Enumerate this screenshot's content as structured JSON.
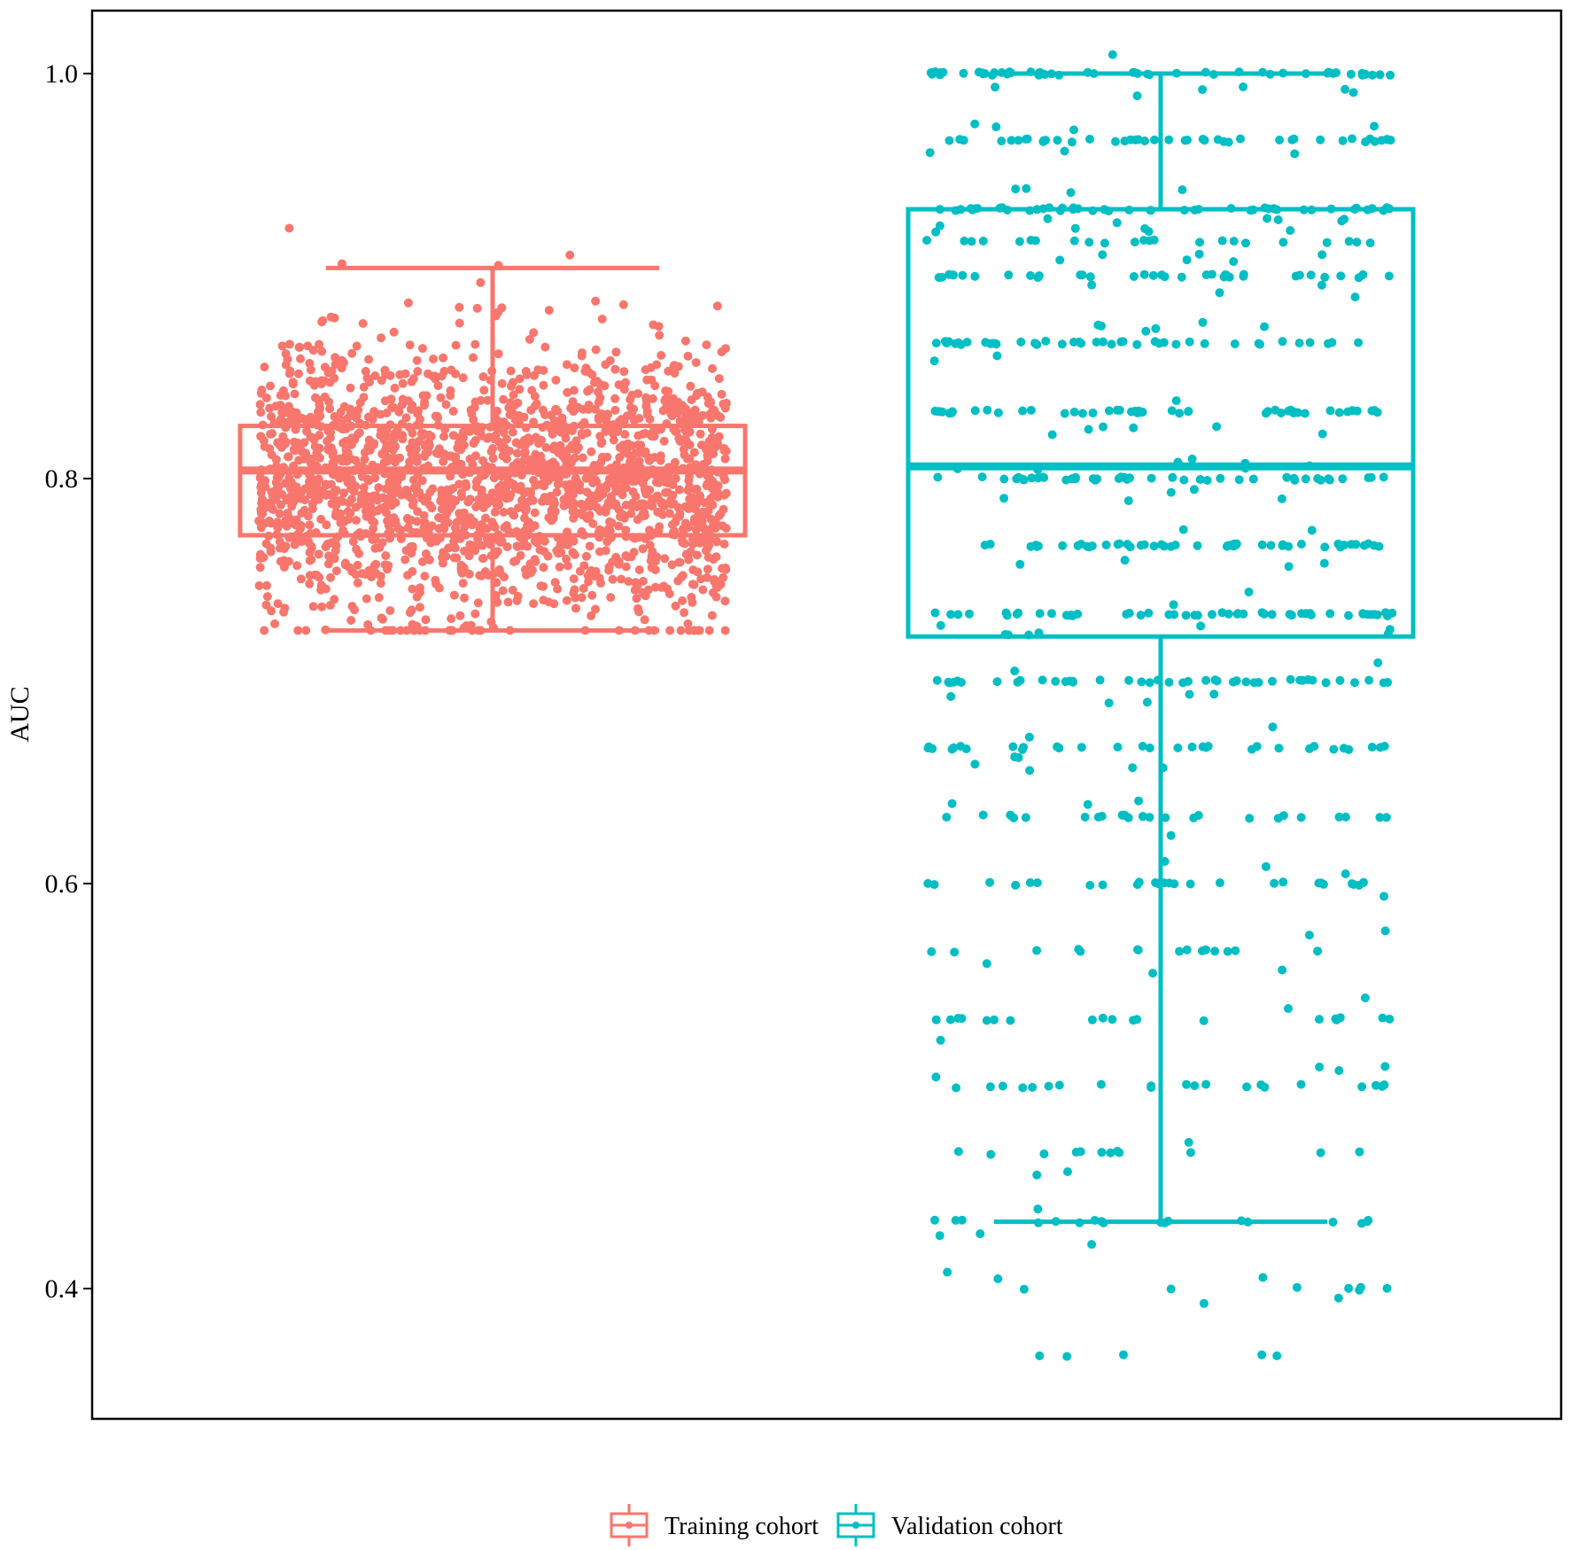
{
  "chart_data": {
    "type": "boxplot",
    "title": "",
    "xlabel": "",
    "ylabel": "AUC",
    "ylim": [
      0.335,
      1.03
    ],
    "yticks": [
      0.4,
      0.6,
      0.8,
      1.0
    ],
    "ytick_labels": [
      "0.4",
      "0.6",
      "0.8",
      "1.0"
    ],
    "grid": false,
    "legend_position": "bottom",
    "series": [
      {
        "name": "Training cohort",
        "color": "#F8766D",
        "box": {
          "whisker_low": 0.725,
          "q1": 0.772,
          "median": 0.804,
          "q3": 0.826,
          "whisker_high": 0.904
        },
        "jitter_points": {
          "count": 2000,
          "observed_min": 0.725,
          "observed_max": 0.93
        }
      },
      {
        "name": "Validation cohort",
        "color": "#00BFC4",
        "box": {
          "whisker_low": 0.433,
          "q1": 0.722,
          "median": 0.806,
          "q3": 0.933,
          "whisker_high": 1.0
        },
        "jitter_points": {
          "discrete_levels": [
            1.0,
            0.967,
            0.933,
            0.917,
            0.9,
            0.867,
            0.833,
            0.8,
            0.767,
            0.733,
            0.7,
            0.667,
            0.633,
            0.6,
            0.567,
            0.533,
            0.5,
            0.467,
            0.433,
            0.4,
            0.367
          ],
          "observed_min": 0.367,
          "observed_max": 1.0
        }
      }
    ]
  }
}
